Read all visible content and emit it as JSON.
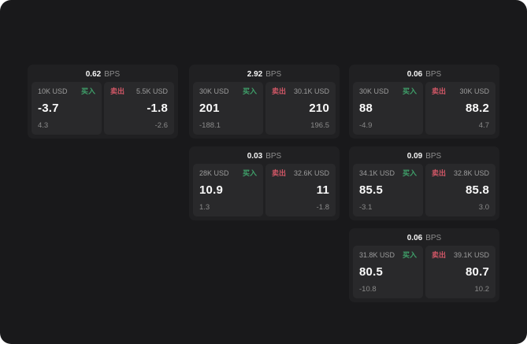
{
  "labels": {
    "bps_unit": "BPS",
    "buy": "买入",
    "sell": "卖出"
  },
  "colors": {
    "canvas_bg": "#19191b",
    "card_bg": "#202022",
    "panel_bg": "#29292b",
    "buy_green": "#3fa06a",
    "sell_red": "#d15766",
    "price_white": "#fafafa",
    "muted_gray": "#9c9c9c"
  },
  "layout_grid": {
    "column_lefts": [
      35,
      240,
      443
    ],
    "row_tops": [
      82,
      186,
      290
    ]
  },
  "cards": [
    {
      "row": 1,
      "col": 1,
      "bps": "0.62",
      "buy": {
        "amount": "10K USD",
        "price": "-3.7",
        "delta": "4.3"
      },
      "sell": {
        "amount": "5.5K USD",
        "price": "-1.8",
        "delta": "-2.6"
      }
    },
    {
      "row": 1,
      "col": 2,
      "bps": "2.92",
      "buy": {
        "amount": "30K USD",
        "price": "201",
        "delta": "-188.1"
      },
      "sell": {
        "amount": "30.1K USD",
        "price": "210",
        "delta": "196.5"
      }
    },
    {
      "row": 1,
      "col": 3,
      "bps": "0.06",
      "buy": {
        "amount": "30K USD",
        "price": "88",
        "delta": "-4.9"
      },
      "sell": {
        "amount": "30K USD",
        "price": "88.2",
        "delta": "4.7"
      }
    },
    {
      "row": 2,
      "col": 2,
      "bps": "0.03",
      "buy": {
        "amount": "28K USD",
        "price": "10.9",
        "delta": "1.3"
      },
      "sell": {
        "amount": "32.6K USD",
        "price": "11",
        "delta": "-1.8"
      }
    },
    {
      "row": 2,
      "col": 3,
      "bps": "0.09",
      "buy": {
        "amount": "34.1K USD",
        "price": "85.5",
        "delta": "-3.1"
      },
      "sell": {
        "amount": "32.8K USD",
        "price": "85.8",
        "delta": "3.0"
      }
    },
    {
      "row": 3,
      "col": 3,
      "bps": "0.06",
      "buy": {
        "amount": "31.8K USD",
        "price": "80.5",
        "delta": "-10.8"
      },
      "sell": {
        "amount": "39.1K USD",
        "price": "80.7",
        "delta": "10.2"
      }
    }
  ]
}
